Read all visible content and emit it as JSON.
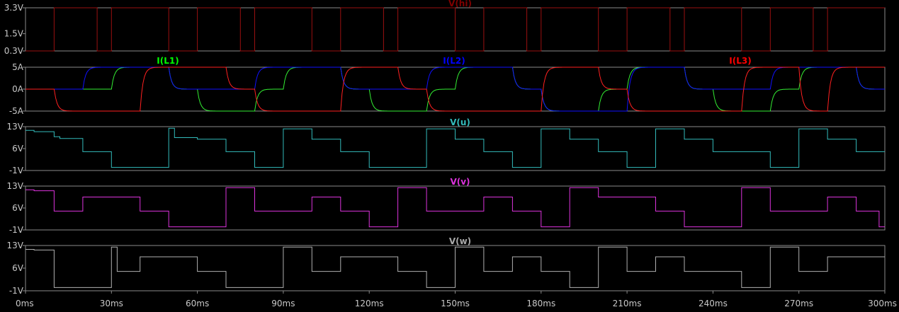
{
  "chart_data": [
    {
      "type": "line",
      "title": "V(hi)",
      "title_color": "#800000",
      "ylim": [
        0.3,
        3.3
      ],
      "y_ticks": [
        {
          "value": 3.3,
          "label": "3.3V"
        },
        {
          "value": 1.5,
          "label": "1.5V"
        },
        {
          "value": 0.3,
          "label": "0.3V"
        }
      ],
      "series": [
        {
          "name": "V(hi)",
          "color": "#9a1010",
          "x": [
            0,
            5,
            5,
            10,
            10,
            25,
            25,
            30,
            30,
            50,
            50,
            55,
            55,
            60,
            60,
            75,
            75,
            80,
            80,
            100,
            100,
            105,
            105,
            110,
            110,
            125,
            125,
            130,
            130,
            150,
            150,
            155,
            155,
            160,
            160,
            175,
            175,
            180,
            180,
            200,
            200,
            205,
            205,
            210,
            210,
            225,
            225,
            230,
            230,
            250,
            250,
            255,
            255,
            260,
            260,
            275,
            275,
            280,
            280,
            300
          ],
          "y": [
            0.3,
            0.3,
            0.3,
            0.3,
            3.3,
            3.3,
            0.3,
            0.3,
            3.3,
            3.3,
            0.3,
            0.3,
            0.3,
            0.3,
            3.3,
            3.3,
            0.3,
            0.3,
            3.3,
            3.3,
            0.3,
            0.3,
            0.3,
            0.3,
            3.3,
            3.3,
            0.3,
            0.3,
            3.3,
            3.3,
            0.3,
            0.3,
            0.3,
            0.3,
            3.3,
            3.3,
            0.3,
            0.3,
            3.3,
            3.3,
            0.3,
            0.3,
            0.3,
            0.3,
            3.3,
            3.3,
            0.3,
            0.3,
            3.3,
            3.3,
            0.3,
            0.3,
            0.3,
            0.3,
            3.3,
            3.3,
            0.3,
            0.3,
            3.3,
            3.3
          ]
        }
      ]
    },
    {
      "type": "line",
      "ylim": [
        -5,
        5
      ],
      "y_ticks": [
        {
          "value": 5,
          "label": "5A"
        },
        {
          "value": 0,
          "label": "0A"
        },
        {
          "value": -5,
          "label": "-5A"
        }
      ],
      "legend": [
        {
          "name": "I(L1)",
          "color": "#00ff00"
        },
        {
          "name": "I(L2)",
          "color": "#0000ff"
        },
        {
          "name": "I(L3)",
          "color": "#ff0000"
        }
      ],
      "series": [
        {
          "name": "I(L1)",
          "color": "#33ee33",
          "tau": 1.0,
          "x": [
            0,
            20,
            30,
            40,
            50,
            60,
            70,
            80,
            90,
            100,
            110,
            120,
            130,
            140,
            150,
            160,
            170,
            180,
            190,
            200,
            210,
            220,
            230,
            240,
            250,
            260,
            270,
            280,
            290,
            300
          ],
          "y": [
            0,
            0,
            5,
            5,
            0,
            -5,
            -5,
            0,
            5,
            5,
            0,
            -5,
            -5,
            0,
            5,
            5,
            0,
            -5,
            -5,
            0,
            5,
            5,
            0,
            -5,
            -5,
            0,
            5,
            5,
            0,
            0
          ]
        },
        {
          "name": "I(L2)",
          "color": "#1010ff",
          "tau": 1.0,
          "x": [
            0,
            20,
            30,
            40,
            50,
            60,
            70,
            80,
            90,
            100,
            110,
            120,
            130,
            140,
            150,
            160,
            170,
            180,
            190,
            200,
            210,
            220,
            230,
            240,
            250,
            260,
            270,
            280,
            290,
            300
          ],
          "y": [
            0,
            5,
            5,
            5,
            0,
            0,
            0,
            5,
            5,
            5,
            0,
            0,
            0,
            5,
            5,
            5,
            0,
            -5,
            -5,
            -5,
            5,
            5,
            0,
            0,
            0,
            5,
            5,
            5,
            0,
            -5
          ]
        },
        {
          "name": "I(L3)",
          "color": "#ff2020",
          "tau": 1.0,
          "x": [
            0,
            10,
            20,
            40,
            50,
            60,
            70,
            80,
            90,
            110,
            120,
            130,
            140,
            150,
            160,
            180,
            190,
            200,
            210,
            220,
            230,
            250,
            260,
            270,
            280,
            300
          ],
          "y": [
            0,
            -5,
            -5,
            5,
            5,
            5,
            0,
            -5,
            -5,
            5,
            5,
            0,
            -5,
            -5,
            -5,
            5,
            5,
            0,
            -5,
            -5,
            -5,
            5,
            5,
            -5,
            5,
            5
          ]
        }
      ]
    },
    {
      "type": "line",
      "title": "V(u)",
      "title_color": "#33bbbb",
      "ylim": [
        -1,
        13
      ],
      "y_ticks": [
        {
          "value": 13,
          "label": "13V"
        },
        {
          "value": 6,
          "label": "6V"
        },
        {
          "value": -1,
          "label": "-1V"
        }
      ],
      "series": [
        {
          "name": "V(u)",
          "color": "#33bbbb",
          "x": [
            0,
            3,
            3,
            10,
            10,
            12,
            12,
            20,
            20,
            30,
            30,
            50,
            50,
            52,
            52,
            60,
            60,
            70,
            70,
            80,
            80,
            90,
            90,
            100,
            100,
            110,
            110,
            120,
            120,
            140,
            140,
            150,
            150,
            160,
            160,
            170,
            170,
            180,
            180,
            190,
            190,
            200,
            200,
            210,
            210,
            220,
            220,
            230,
            230,
            240,
            240,
            260,
            260,
            270,
            270,
            280,
            280,
            290,
            290,
            300
          ],
          "y": [
            11.8,
            11.8,
            11.4,
            11.4,
            9.8,
            9.8,
            9.2,
            9.2,
            5,
            5,
            0,
            0,
            12.5,
            12.5,
            9.5,
            9.5,
            9,
            9,
            5,
            5,
            0,
            0,
            12.3,
            12.3,
            9,
            9,
            5,
            5,
            0,
            0,
            12.3,
            12.3,
            9,
            9,
            5,
            5,
            0,
            0,
            12.3,
            12.3,
            9,
            9,
            5,
            5,
            0,
            0,
            12.3,
            12.3,
            9,
            9,
            5,
            5,
            0,
            0,
            12.3,
            12.3,
            9,
            9,
            5,
            5
          ]
        }
      ]
    },
    {
      "type": "line",
      "title": "V(v)",
      "title_color": "#dd33dd",
      "ylim": [
        -1,
        13
      ],
      "y_ticks": [
        {
          "value": 13,
          "label": "13V"
        },
        {
          "value": 6,
          "label": "6V"
        },
        {
          "value": -1,
          "label": "-1V"
        }
      ],
      "series": [
        {
          "name": "V(v)",
          "color": "#dd33dd",
          "x": [
            0,
            3,
            3,
            10,
            10,
            20,
            20,
            40,
            40,
            50,
            50,
            70,
            70,
            80,
            80,
            100,
            100,
            110,
            110,
            120,
            120,
            130,
            130,
            140,
            140,
            160,
            160,
            170,
            170,
            180,
            180,
            190,
            190,
            200,
            200,
            220,
            220,
            230,
            230,
            250,
            250,
            260,
            260,
            280,
            280,
            290,
            290,
            298,
            298,
            300
          ],
          "y": [
            11.8,
            11.8,
            11.5,
            11.5,
            5,
            5,
            9.5,
            9.5,
            5,
            5,
            0,
            0,
            12.5,
            12.5,
            5,
            5,
            9.5,
            9.5,
            5,
            5,
            0,
            0,
            12.5,
            12.5,
            5,
            5,
            9.5,
            9.5,
            5,
            5,
            0,
            0,
            12.5,
            12.5,
            9.5,
            9.5,
            5,
            5,
            0,
            0,
            12.5,
            12.5,
            5,
            5,
            9.5,
            9.5,
            5,
            5,
            0,
            0
          ]
        }
      ]
    },
    {
      "type": "line",
      "title": "V(w)",
      "title_color": "#aaaaaa",
      "ylim": [
        -1,
        13
      ],
      "y_ticks": [
        {
          "value": 13,
          "label": "13V"
        },
        {
          "value": 6,
          "label": "6V"
        },
        {
          "value": -1,
          "label": "-1V"
        }
      ],
      "x_ticks": [
        "0ms",
        "30ms",
        "60ms",
        "90ms",
        "120ms",
        "150ms",
        "180ms",
        "210ms",
        "240ms",
        "270ms",
        "300ms"
      ],
      "xlim": [
        0,
        300
      ],
      "series": [
        {
          "name": "V(w)",
          "color": "#b0b0b0",
          "x": [
            0,
            3,
            3,
            10,
            10,
            30,
            30,
            32,
            32,
            40,
            40,
            60,
            60,
            70,
            70,
            90,
            90,
            100,
            100,
            110,
            110,
            130,
            130,
            140,
            140,
            150,
            150,
            160,
            160,
            170,
            170,
            180,
            180,
            190,
            190,
            200,
            200,
            210,
            210,
            220,
            220,
            230,
            230,
            250,
            250,
            260,
            260,
            270,
            270,
            280,
            280,
            300
          ],
          "y": [
            11.8,
            11.8,
            11.6,
            11.6,
            0,
            0,
            12.5,
            12.5,
            5,
            5,
            9.5,
            9.5,
            5,
            5,
            0,
            0,
            12.5,
            12.5,
            5,
            5,
            9.5,
            9.5,
            5,
            5,
            0,
            0,
            12.5,
            12.5,
            5,
            5,
            9.5,
            9.5,
            5,
            5,
            0,
            0,
            12.5,
            12.5,
            5,
            5,
            9.5,
            9.5,
            5,
            5,
            0,
            0,
            12.5,
            12.5,
            5,
            5,
            9.5,
            9.5
          ]
        }
      ]
    }
  ]
}
